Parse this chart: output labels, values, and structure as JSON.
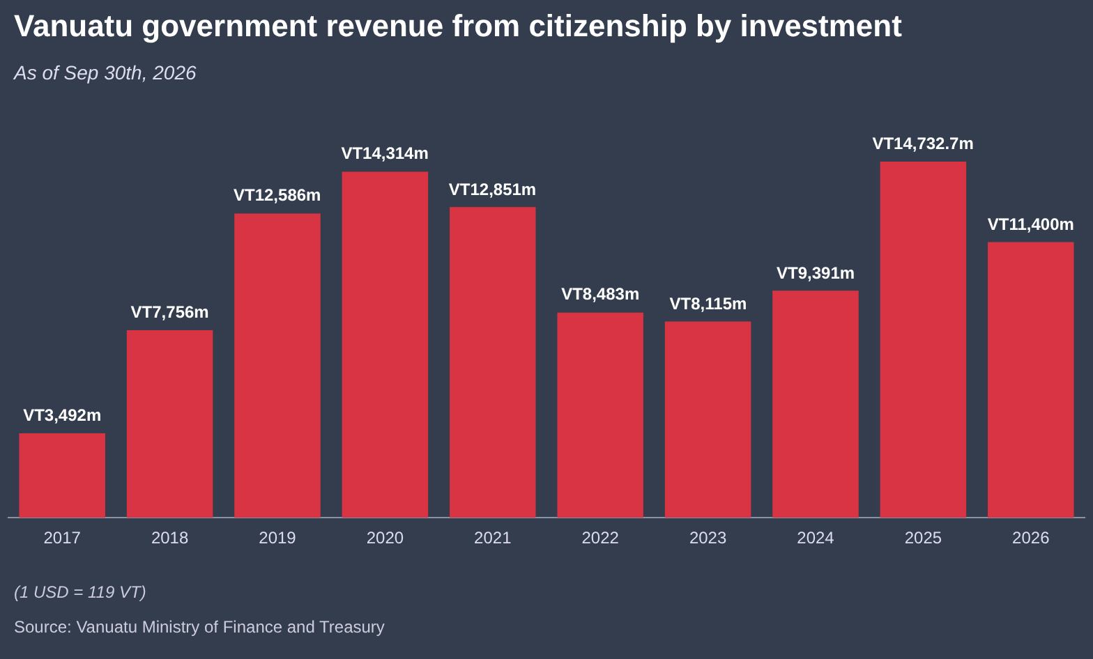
{
  "chart_data": {
    "type": "bar",
    "title": "Vanuatu government revenue from citizenship by investment",
    "subtitle": "As of Sep 30th, 2026",
    "categories": [
      "2017",
      "2018",
      "2019",
      "2020",
      "2021",
      "2022",
      "2023",
      "2024",
      "2025",
      "2026"
    ],
    "values": [
      3492000000,
      7756000000,
      12586000000,
      14314000000,
      12851000000,
      8483000000,
      8115000000,
      9391000000,
      14732700000,
      11400000000
    ],
    "value_labels": [
      "VT3,492m",
      "VT7,756m",
      "VT12,586m",
      "VT14,314m",
      "VT12,851m",
      "VT8,483m",
      "VT8,115m",
      "VT9,391m",
      "VT14,732.7m",
      "VT11,400m"
    ],
    "color": "#d83444",
    "grid": false,
    "legend": false,
    "annotations": [
      "(1 USD = 119 VT)",
      "Source: Vanuatu Ministry of Finance and Treasury"
    ]
  }
}
